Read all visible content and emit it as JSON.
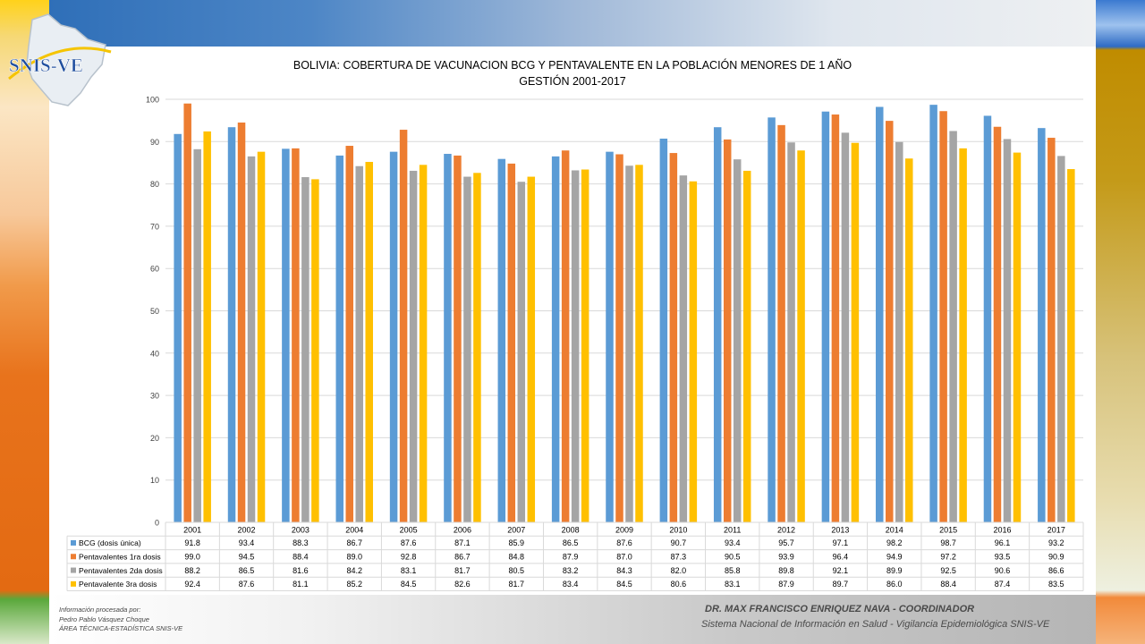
{
  "logo": {
    "text": "SNIS-VE"
  },
  "footer": {
    "processed_by_lines": [
      "Información procesada por:",
      "Pedro Pablo Vásquez Choque",
      "ÁREA TÉCNICA-ESTADÍSTICA  SNIS-VE"
    ],
    "coordinator": "DR. MAX FRANCISCO ENRIQUEZ NAVA - COORDINADOR",
    "system": "Sistema Nacional de Información en Salud - Vigilancia Epidemiológica SNIS-VE"
  },
  "chart_data": {
    "type": "bar",
    "title_lines": [
      "BOLIVIA: COBERTURA DE VACUNACION BCG Y PENTAVALENTE EN LA POBLACIÓN MENORES DE 1 AÑO",
      "GESTIÓN 2001-2017"
    ],
    "categories": [
      "2001",
      "2002",
      "2003",
      "2004",
      "2005",
      "2006",
      "2007",
      "2008",
      "2009",
      "2010",
      "2011",
      "2012",
      "2013",
      "2014",
      "2015",
      "2016",
      "2017"
    ],
    "ylim": [
      0,
      100
    ],
    "yticks": [
      0,
      10,
      20,
      30,
      40,
      50,
      60,
      70,
      80,
      90,
      100
    ],
    "grid": true,
    "legend": "data-table",
    "series": [
      {
        "name": "BCG (dosis única)",
        "color": "#5b9bd5",
        "values": [
          91.8,
          93.4,
          88.3,
          86.7,
          87.6,
          87.1,
          85.9,
          86.5,
          87.6,
          90.7,
          93.4,
          95.7,
          97.1,
          98.2,
          98.7,
          96.1,
          93.2
        ]
      },
      {
        "name": "Pentavalentes 1ra dosis",
        "color": "#ed7d31",
        "values": [
          99.0,
          94.5,
          88.4,
          89.0,
          92.8,
          86.7,
          84.8,
          87.9,
          87.0,
          87.3,
          90.5,
          93.9,
          96.4,
          94.9,
          97.2,
          93.5,
          90.9
        ]
      },
      {
        "name": "Pentavalentes 2da dosis",
        "color": "#a5a5a5",
        "values": [
          88.2,
          86.5,
          81.6,
          84.2,
          83.1,
          81.7,
          80.5,
          83.2,
          84.3,
          82.0,
          85.8,
          89.8,
          92.1,
          89.9,
          92.5,
          90.6,
          86.6
        ]
      },
      {
        "name": "Pentavalente 3ra dosis",
        "color": "#ffc000",
        "values": [
          92.4,
          87.6,
          81.1,
          85.2,
          84.5,
          82.6,
          81.7,
          83.4,
          84.5,
          80.6,
          83.1,
          87.9,
          89.7,
          86.0,
          88.4,
          87.4,
          83.5
        ]
      }
    ]
  }
}
